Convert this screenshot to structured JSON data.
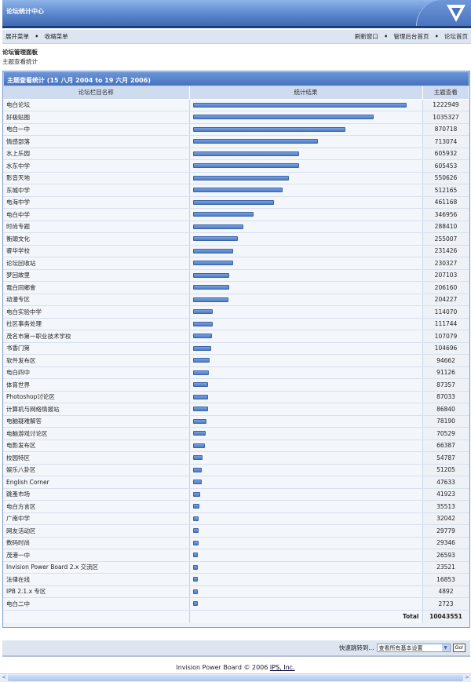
{
  "header": {
    "title": "论坛统计中心",
    "logo": "v-logo"
  },
  "nav": {
    "left": [
      "展开菜单",
      "收缩菜单"
    ],
    "right": [
      "刷新窗口",
      "管理后台首页",
      "论坛首页"
    ],
    "sep": "•"
  },
  "page": {
    "title": "论坛管理面板",
    "subtitle": "主题查看统计"
  },
  "table": {
    "title": "主题查看统计 (15 八月 2004 to 19 六月 2006)",
    "col_name": "论坛栏目名称",
    "col_result": "统计结果",
    "col_views": "主题查看",
    "total_label": "Total",
    "total_value": "10043551"
  },
  "chart_data": {
    "type": "bar",
    "orientation": "horizontal",
    "xlim": [
      0,
      1222949
    ],
    "categories": [
      "电白论坛",
      "好极贴图",
      "电白一中",
      "情感部落",
      "水上乐园",
      "水东中学",
      "影音天地",
      "东城中学",
      "电海中学",
      "电白中学",
      "时尚专题",
      "衡頭文化",
      "睿华学校",
      "论坛回收站",
      "梦回故里",
      "電白同鄉會",
      "动漫专区",
      "电白实验中学",
      "社区事务处理",
      "茂名市第一职业技术学校",
      "书香门第",
      "软件发布区",
      "电白四中",
      "体育世界",
      "Photoshop讨论区",
      "计算机与网络情报站",
      "电脑疑难解答",
      "电脑游戏讨论区",
      "电影发布区",
      "校园特区",
      "娱乐八卦区",
      "English Corner",
      "跳蚤市场",
      "电白方言区",
      "广南中学",
      "网友活动区",
      "数码时尚",
      "茂港一中",
      "Invision Power Board 2.x 交流区",
      "法律在线",
      "IPB 2.1.x 专区",
      "电白二中"
    ],
    "values": [
      1222949,
      1035327,
      870718,
      713074,
      605932,
      605453,
      550626,
      512165,
      461168,
      346956,
      288410,
      255007,
      231426,
      230327,
      207103,
      206160,
      204227,
      114070,
      111744,
      107079,
      104696,
      94662,
      91126,
      87357,
      87033,
      86840,
      78190,
      70529,
      66387,
      54787,
      51205,
      47633,
      41923,
      35513,
      32042,
      29779,
      29346,
      26593,
      23521,
      16853,
      4892,
      2723
    ]
  },
  "quickjump": {
    "label": "快速跳转到...",
    "selected": "查看所有基本设置",
    "go": "Go!"
  },
  "footer": {
    "text": "Invision Power Board © 2006 ",
    "link": "IPS, Inc."
  },
  "colors": {
    "header": "#4672c0",
    "bar": "#5b88d0",
    "nav": "#dde5f1"
  }
}
